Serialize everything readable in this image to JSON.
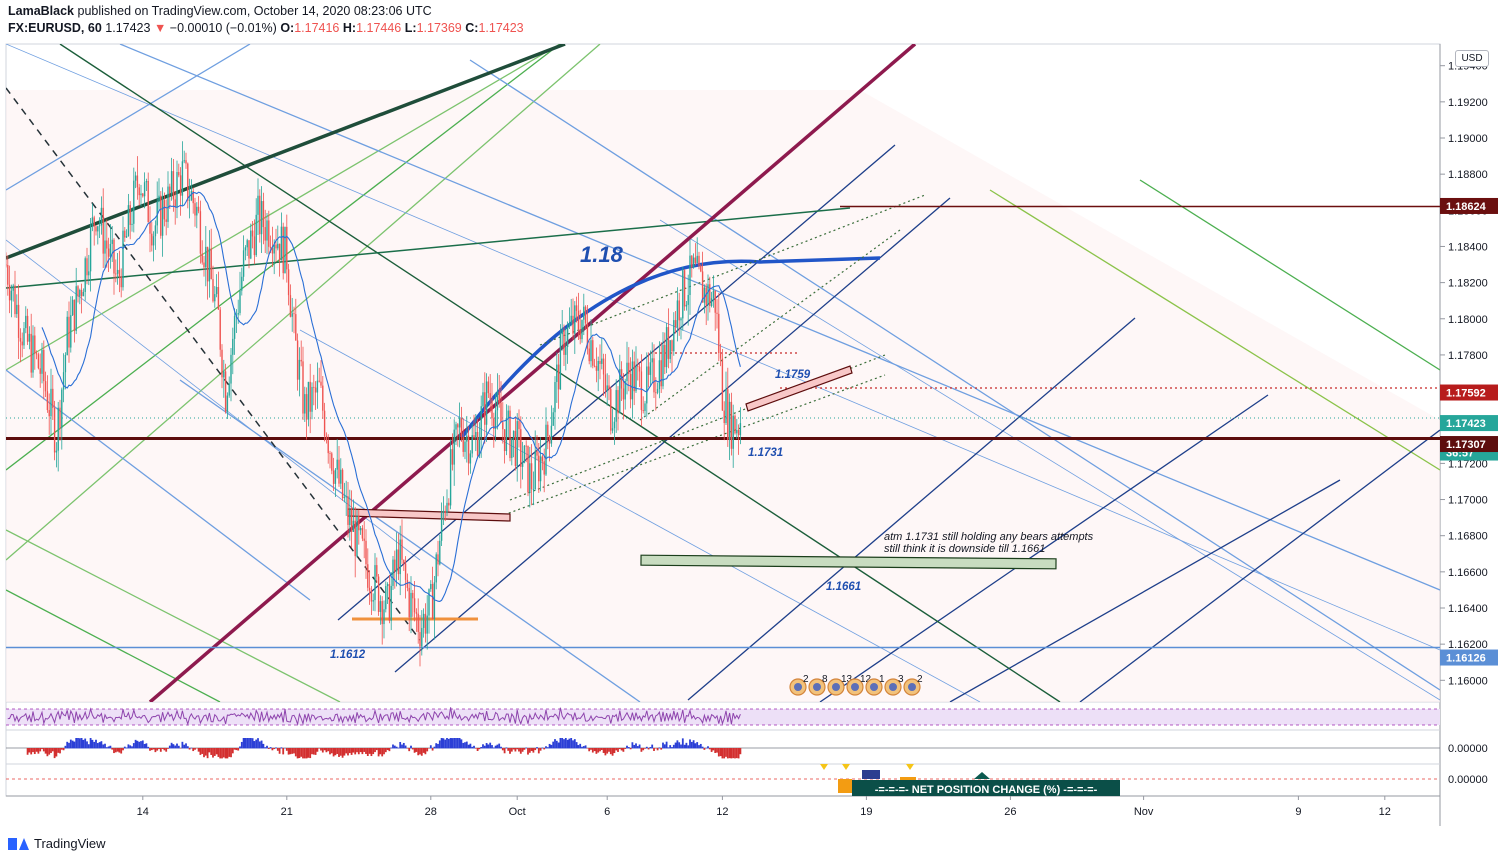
{
  "header": {
    "author": "LamaBlack",
    "published_text": "published on TradingView.com, October 14, 2020 08:23:06 UTC",
    "symbol": "FX:EURUSD, 60",
    "last": "1.17423",
    "arrow": "▼",
    "change": "−0.00010 (−0.01%)",
    "o_label": "O:",
    "o": "1.17416",
    "h_label": "H:",
    "h": "1.17446",
    "l_label": "L:",
    "l": "1.17369",
    "c_label": "C:",
    "c": "1.17423"
  },
  "price_axis": {
    "currency": "USD",
    "ticks": [
      "1.19400",
      "1.19200",
      "1.19000",
      "1.18800",
      "1.18600",
      "1.18400",
      "1.18200",
      "1.18000",
      "1.17800",
      "1.17600",
      "1.17400",
      "1.17200",
      "1.17000",
      "1.16800",
      "1.16600",
      "1.16400",
      "1.16200",
      "1.16000"
    ],
    "tags": [
      {
        "text": "1.18624",
        "value": 1.18624,
        "color": "#6b0f0f"
      },
      {
        "text": "1.17592",
        "value": 1.17592,
        "color": "#b71c1c"
      },
      {
        "text": "1.17423",
        "value": 1.17423,
        "color": "#26a69a"
      },
      {
        "text": "36:57",
        "value": 1.1726,
        "color": "#26a69a"
      },
      {
        "text": "1.17307",
        "value": 1.17307,
        "color": "#5d0d0d"
      },
      {
        "text": "1.16126",
        "value": 1.16126,
        "color": "#5b8fd6"
      }
    ],
    "sub_ticks": [
      "0.00000",
      "0.00000"
    ]
  },
  "time_axis": {
    "labels": [
      {
        "text": "14",
        "bar": 76
      },
      {
        "text": "21",
        "bar": 156
      },
      {
        "text": "28",
        "bar": 236
      },
      {
        "text": "Oct",
        "bar": 284
      },
      {
        "text": "6",
        "bar": 334
      },
      {
        "text": "12",
        "bar": 398
      },
      {
        "text": "19",
        "bar": 478
      },
      {
        "text": "26",
        "bar": 558
      },
      {
        "text": "Nov",
        "bar": 632
      },
      {
        "text": "9",
        "bar": 718
      },
      {
        "text": "12",
        "bar": 766
      }
    ]
  },
  "annotations": {
    "big_label": "1.18",
    "l1759": "1.1759",
    "l1731": "1.1731",
    "l1661": "1.1661",
    "l1612": "1.1612",
    "note_line1": "atm 1.1731 still holding any bears attempts",
    "note_line2": "still think it is downside till 1.1661",
    "net_position": "-=-=-=- NET POSITION CHANGE (%) -=-=-=-"
  },
  "events": [
    "2",
    "8",
    "13",
    "12",
    "1",
    "3",
    "2"
  ],
  "chart_data": {
    "type": "candlestick",
    "symbol": "FX:EURUSD",
    "interval": "60",
    "y_range": [
      1.1588,
      1.1952
    ],
    "last_close": 1.17423,
    "horizontal_levels": [
      1.18624,
      1.17592,
      1.17307,
      1.16126
    ],
    "close_path": [
      {
        "bar": 0,
        "close": 1.183
      },
      {
        "bar": 10,
        "close": 1.179
      },
      {
        "bar": 20,
        "close": 1.177
      },
      {
        "bar": 28,
        "close": 1.1735
      },
      {
        "bar": 34,
        "close": 1.179
      },
      {
        "bar": 42,
        "close": 1.182
      },
      {
        "bar": 50,
        "close": 1.186
      },
      {
        "bar": 56,
        "close": 1.184
      },
      {
        "bar": 62,
        "close": 1.182
      },
      {
        "bar": 68,
        "close": 1.185
      },
      {
        "bar": 74,
        "close": 1.188
      },
      {
        "bar": 82,
        "close": 1.185
      },
      {
        "bar": 90,
        "close": 1.1865
      },
      {
        "bar": 98,
        "close": 1.188
      },
      {
        "bar": 106,
        "close": 1.186
      },
      {
        "bar": 112,
        "close": 1.183
      },
      {
        "bar": 118,
        "close": 1.18
      },
      {
        "bar": 122,
        "close": 1.176
      },
      {
        "bar": 126,
        "close": 1.179
      },
      {
        "bar": 132,
        "close": 1.183
      },
      {
        "bar": 140,
        "close": 1.1855
      },
      {
        "bar": 148,
        "close": 1.185
      },
      {
        "bar": 156,
        "close": 1.1835
      },
      {
        "bar": 160,
        "close": 1.179
      },
      {
        "bar": 166,
        "close": 1.175
      },
      {
        "bar": 174,
        "close": 1.176
      },
      {
        "bar": 182,
        "close": 1.172
      },
      {
        "bar": 190,
        "close": 1.169
      },
      {
        "bar": 198,
        "close": 1.167
      },
      {
        "bar": 206,
        "close": 1.165
      },
      {
        "bar": 212,
        "close": 1.164
      },
      {
        "bar": 218,
        "close": 1.167
      },
      {
        "bar": 224,
        "close": 1.1645
      },
      {
        "bar": 230,
        "close": 1.163
      },
      {
        "bar": 236,
        "close": 1.164
      },
      {
        "bar": 244,
        "close": 1.17
      },
      {
        "bar": 252,
        "close": 1.174
      },
      {
        "bar": 260,
        "close": 1.173
      },
      {
        "bar": 268,
        "close": 1.176
      },
      {
        "bar": 276,
        "close": 1.174
      },
      {
        "bar": 284,
        "close": 1.173
      },
      {
        "bar": 292,
        "close": 1.171
      },
      {
        "bar": 300,
        "close": 1.173
      },
      {
        "bar": 310,
        "close": 1.179
      },
      {
        "bar": 320,
        "close": 1.18
      },
      {
        "bar": 328,
        "close": 1.178
      },
      {
        "bar": 336,
        "close": 1.175
      },
      {
        "bar": 346,
        "close": 1.177
      },
      {
        "bar": 356,
        "close": 1.176
      },
      {
        "bar": 366,
        "close": 1.178
      },
      {
        "bar": 374,
        "close": 1.181
      },
      {
        "bar": 382,
        "close": 1.1825
      },
      {
        "bar": 388,
        "close": 1.1815
      },
      {
        "bar": 394,
        "close": 1.181
      },
      {
        "bar": 398,
        "close": 1.176
      },
      {
        "bar": 402,
        "close": 1.1742
      },
      {
        "bar": 408,
        "close": 1.1742
      }
    ],
    "indicators": [
      "Moving average",
      "RSI",
      "MACD histogram",
      "Net position change (%)"
    ]
  }
}
